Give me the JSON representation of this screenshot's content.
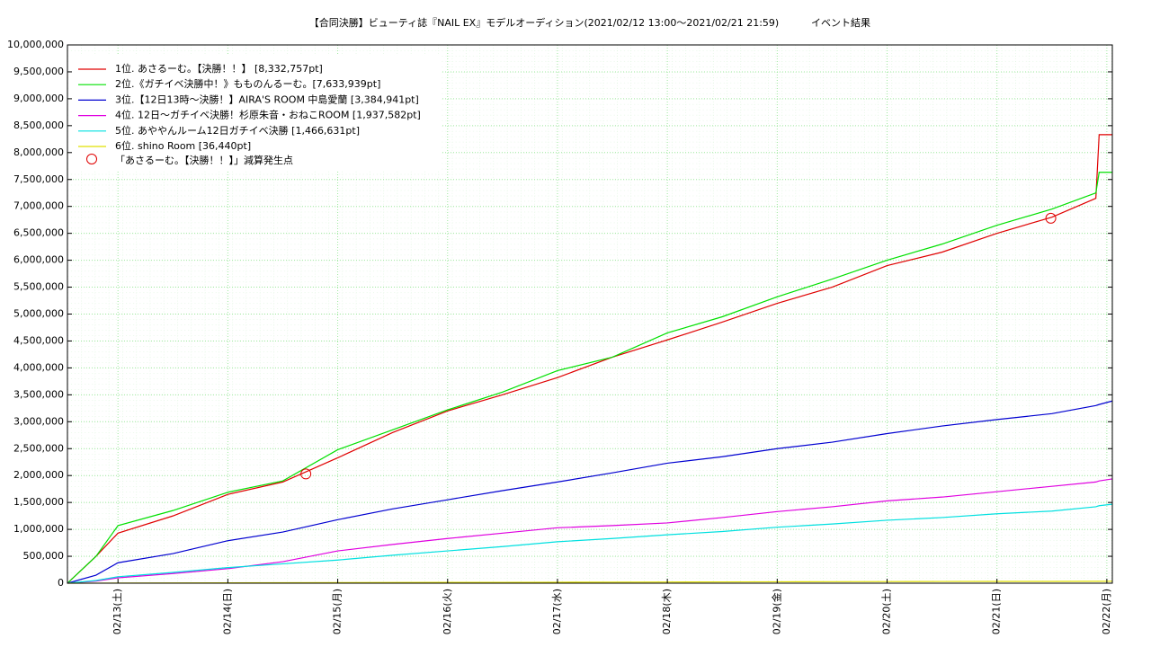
{
  "chart_data": {
    "type": "line",
    "title": "【合同決勝】ビューティ誌『NAIL EX』モデルオーディション(2021/02/12 13:00～2021/02/21 21:59)",
    "subtitle": "イベント結果",
    "x": [
      12.54,
      12.8,
      13,
      13.5,
      14,
      14.5,
      15,
      15.5,
      16,
      16.5,
      17,
      17.5,
      18,
      18.5,
      19,
      19.5,
      20,
      20.5,
      21,
      21.5,
      21.9,
      21.93,
      22.05
    ],
    "series": [
      {
        "name": "1位. あさるーむ。【決勝！！】 [8,332,757pt]",
        "color": "#e00000",
        "values": [
          0,
          500000,
          930000,
          1250000,
          1650000,
          1880000,
          2330000,
          2800000,
          3200000,
          3500000,
          3820000,
          4200000,
          4520000,
          4850000,
          5200000,
          5500000,
          5900000,
          6150000,
          6500000,
          6800000,
          7150000,
          8332757,
          8332757
        ]
      },
      {
        "name": "2位.《ガチイベ決勝中！》もものんるーむ。[7,633,939pt]",
        "color": "#00e000",
        "values": [
          0,
          500000,
          1070000,
          1350000,
          1690000,
          1900000,
          2480000,
          2850000,
          3220000,
          3550000,
          3950000,
          4200000,
          4650000,
          4950000,
          5320000,
          5650000,
          6000000,
          6300000,
          6650000,
          6950000,
          7250000,
          7633939,
          7633939
        ]
      },
      {
        "name": "3位.【12日13時～決勝！】AIRA'S ROOM 中島愛蘭 [3,384,941pt]",
        "color": "#0000d0",
        "values": [
          0,
          150000,
          380000,
          550000,
          790000,
          950000,
          1180000,
          1380000,
          1550000,
          1720000,
          1880000,
          2050000,
          2230000,
          2350000,
          2500000,
          2620000,
          2780000,
          2920000,
          3040000,
          3150000,
          3300000,
          3320000,
          3384941
        ]
      },
      {
        "name": "4位. 12日～ガチイベ決勝！杉原朱音・おねこROOM [1,937,582pt]",
        "color": "#e000e0",
        "values": [
          0,
          40000,
          100000,
          180000,
          270000,
          400000,
          600000,
          720000,
          830000,
          930000,
          1030000,
          1070000,
          1120000,
          1220000,
          1330000,
          1420000,
          1530000,
          1600000,
          1700000,
          1800000,
          1880000,
          1900000,
          1937582
        ]
      },
      {
        "name": "5位. あややんルーム12日ガチイベ決勝 [1,466,631pt]",
        "color": "#00e0e0",
        "values": [
          0,
          50000,
          120000,
          200000,
          290000,
          360000,
          430000,
          520000,
          600000,
          680000,
          770000,
          830000,
          900000,
          960000,
          1040000,
          1100000,
          1170000,
          1220000,
          1290000,
          1340000,
          1420000,
          1440000,
          1466631
        ]
      },
      {
        "name": "6位. shino Room [36,440pt]",
        "color": "#e0e000",
        "values": [
          0,
          1000,
          2000,
          4000,
          6000,
          8000,
          10000,
          12000,
          14000,
          16000,
          18000,
          20000,
          22000,
          24000,
          26000,
          28000,
          30000,
          32000,
          33000,
          34000,
          35000,
          35500,
          36440
        ]
      }
    ],
    "markers": {
      "name": "「あさるーむ。【決勝！！】」減算発生点",
      "color": "#e00000",
      "x": [
        14.71,
        21.49
      ],
      "values": [
        2030000,
        6780000
      ]
    },
    "xlim": [
      12.54,
      22.05
    ],
    "xticks": [
      {
        "value": 13,
        "label": "02/13(土)"
      },
      {
        "value": 14,
        "label": "02/14(日)"
      },
      {
        "value": 15,
        "label": "02/15(月)"
      },
      {
        "value": 16,
        "label": "02/16(火)"
      },
      {
        "value": 17,
        "label": "02/17(水)"
      },
      {
        "value": 18,
        "label": "02/18(木)"
      },
      {
        "value": 19,
        "label": "02/19(金)"
      },
      {
        "value": 20,
        "label": "02/20(土)"
      },
      {
        "value": 21,
        "label": "02/21(日)"
      },
      {
        "value": 22,
        "label": "02/22(月)"
      }
    ],
    "ylim": [
      0,
      10000000
    ],
    "yticks": [
      0,
      {
        "value": 500000,
        "label": "500,000"
      },
      {
        "value": 1000000,
        "label": "1,000,000"
      },
      {
        "value": 1500000,
        "label": "1,500,000"
      },
      {
        "value": 2000000,
        "label": "2,000,000"
      },
      {
        "value": 2500000,
        "label": "2,500,000"
      },
      {
        "value": 3000000,
        "label": "3,000,000"
      },
      {
        "value": 3500000,
        "label": "3,500,000"
      },
      {
        "value": 4000000,
        "label": "4,000,000"
      },
      {
        "value": 4500000,
        "label": "4,500,000"
      },
      {
        "value": 5000000,
        "label": "5,000,000"
      },
      {
        "value": 5500000,
        "label": "5,500,000"
      },
      {
        "value": 6000000,
        "label": "6,000,000"
      },
      {
        "value": 6500000,
        "label": "6,500,000"
      },
      {
        "value": 7000000,
        "label": "7,000,000"
      },
      {
        "value": 7500000,
        "label": "7,500,000"
      },
      {
        "value": 8000000,
        "label": "8,000,000"
      },
      {
        "value": 8500000,
        "label": "8,500,000"
      },
      {
        "value": 9000000,
        "label": "9,000,000"
      },
      {
        "value": 9500000,
        "label": "9,500,000"
      },
      {
        "value": 10000000,
        "label": "10,000,000"
      }
    ],
    "grid": true
  }
}
